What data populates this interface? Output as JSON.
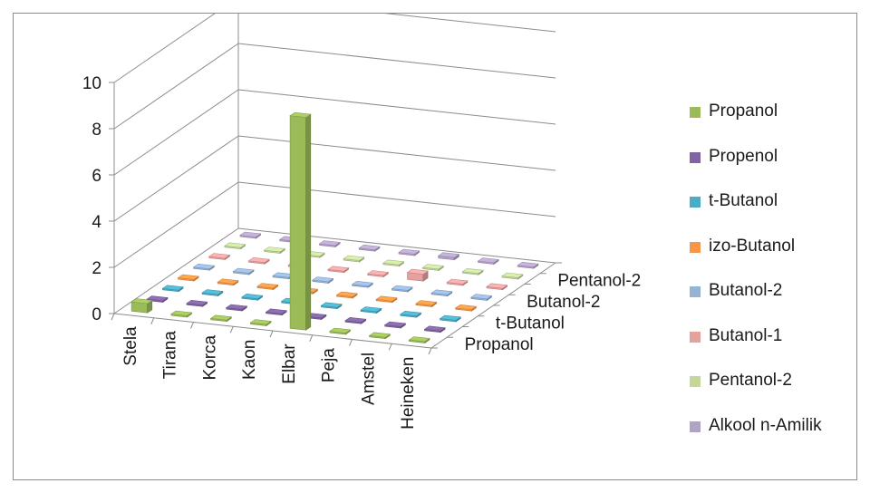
{
  "chart_data": {
    "type": "bar",
    "subtype": "3d-column",
    "title": "",
    "xlabel": "",
    "ylabel": "",
    "ylim": [
      0,
      10
    ],
    "yticks": [
      "0",
      "2",
      "4",
      "6",
      "8",
      "10"
    ],
    "categories": [
      "Stela",
      "Tirana",
      "Korca",
      "Kaon",
      "Elbar",
      "Peja",
      "Amstel",
      "Heineken"
    ],
    "depth_axis_labels": [
      "Propanol",
      "t-Butanol",
      "Butanol-2",
      "Pentanol-2"
    ],
    "grid": true,
    "legend_position": "right",
    "series": [
      {
        "name": "Propanol",
        "color": "#9bbb59",
        "values": [
          0.4,
          0,
          0,
          0,
          9.2,
          0,
          0,
          0
        ]
      },
      {
        "name": "Propenol",
        "color": "#8064a2",
        "values": [
          0,
          0,
          0,
          0,
          0,
          0,
          0,
          0
        ]
      },
      {
        "name": "t-Butanol",
        "color": "#4bacc6",
        "values": [
          0,
          0,
          0,
          0,
          0,
          0,
          0,
          0
        ]
      },
      {
        "name": "izo-Butanol",
        "color": "#f79646",
        "values": [
          0,
          0,
          0,
          0,
          0,
          0,
          0,
          0
        ]
      },
      {
        "name": "Butanol-2",
        "color": "#95b3d7",
        "values": [
          0,
          0,
          0,
          0,
          0,
          0,
          0,
          0
        ]
      },
      {
        "name": "Butanol-1",
        "color": "#e6a0a0",
        "values": [
          0,
          0,
          0,
          0,
          0,
          0.3,
          0,
          0
        ]
      },
      {
        "name": "Pentanol-2",
        "color": "#c3d69b",
        "values": [
          0,
          0,
          0,
          0,
          0,
          0,
          0,
          0
        ]
      },
      {
        "name": "Alkool n-Amilik",
        "color": "#b3a2c7",
        "values": [
          0,
          0,
          0,
          0,
          0,
          0.1,
          0,
          0
        ]
      }
    ]
  }
}
